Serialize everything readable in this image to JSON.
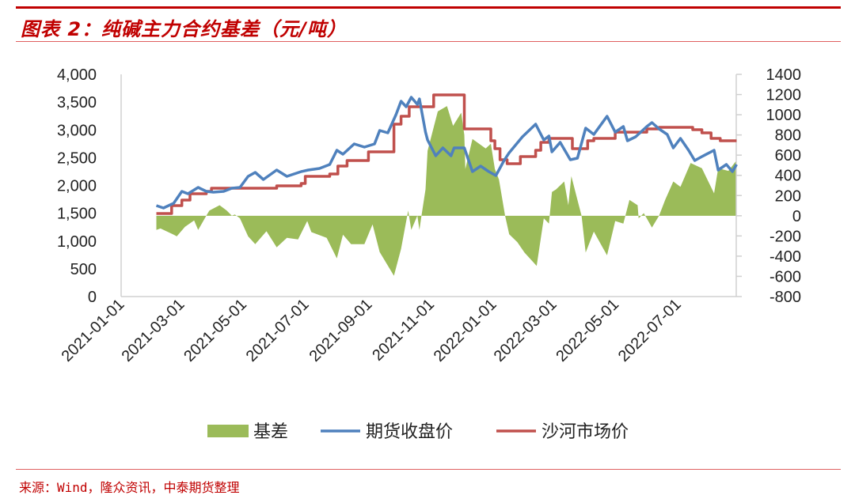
{
  "title": "图表 2：纯碱主力合约基差（元/吨）",
  "source": "来源：Wind，隆众资讯，中泰期货整理",
  "colors": {
    "basis": "#9BBB59",
    "futures": "#4F81BD",
    "spot": "#C0504D",
    "accent": "#C00000"
  },
  "chart_data": {
    "type": "line",
    "title": "纯碱主力合约基差（元/吨）",
    "xlabel": "",
    "ylabel": "",
    "y2label": "",
    "xlim": [
      "2021-01-01",
      "2022-08-26"
    ],
    "ylim": [
      0,
      4000
    ],
    "y2lim": [
      -800,
      1400
    ],
    "x_ticks": [
      "2021-01-01",
      "2021-03-01",
      "2021-05-01",
      "2021-07-01",
      "2021-09-01",
      "2021-11-01",
      "2022-01-01",
      "2022-03-01",
      "2022-05-01",
      "2022-07-01"
    ],
    "y_ticks": [
      "0",
      "500",
      "1,000",
      "1,500",
      "2,000",
      "2,500",
      "3,000",
      "3,500",
      "4,000"
    ],
    "y_tick_values": [
      0,
      500,
      1000,
      1500,
      2000,
      2500,
      3000,
      3500,
      4000
    ],
    "y2_ticks": [
      "-800",
      "-600",
      "-400",
      "-200",
      "0",
      "200",
      "400",
      "600",
      "800",
      "1000",
      "1200",
      "1400"
    ],
    "y2_tick_values": [
      -800,
      -600,
      -400,
      -200,
      0,
      200,
      400,
      600,
      800,
      1000,
      1200,
      1400
    ],
    "legend": {
      "position": "bottom",
      "entries": [
        "基差",
        "期货收盘价",
        "沙河市场价"
      ]
    },
    "series": [
      {
        "name": "基差",
        "kind": "area",
        "axis": "right",
        "points": [
          [
            "2021-02-03",
            -141
          ],
          [
            "2021-02-07",
            -126
          ],
          [
            "2021-02-20",
            -188
          ],
          [
            "2021-02-23",
            -204
          ],
          [
            "2021-03-03",
            -110
          ],
          [
            "2021-03-12",
            -47
          ],
          [
            "2021-03-16",
            -141
          ],
          [
            "2021-03-24",
            0
          ],
          [
            "2021-03-27",
            52
          ],
          [
            "2021-04-06",
            104
          ],
          [
            "2021-04-13",
            52
          ],
          [
            "2021-04-18",
            0
          ],
          [
            "2021-04-21",
            13
          ],
          [
            "2021-04-26",
            -26
          ],
          [
            "2021-05-04",
            -204
          ],
          [
            "2021-05-11",
            -282
          ],
          [
            "2021-05-22",
            -153
          ],
          [
            "2021-06-01",
            -313
          ],
          [
            "2021-06-11",
            -219
          ],
          [
            "2021-06-22",
            -235
          ],
          [
            "2021-07-01",
            -52
          ],
          [
            "2021-07-05",
            -162
          ],
          [
            "2021-07-20",
            -219
          ],
          [
            "2021-07-30",
            -423
          ],
          [
            "2021-08-05",
            -188
          ],
          [
            "2021-08-13",
            -282
          ],
          [
            "2021-08-26",
            -282
          ],
          [
            "2021-09-03",
            -86
          ],
          [
            "2021-09-10",
            -360
          ],
          [
            "2021-09-24",
            -595
          ],
          [
            "2021-10-01",
            -329
          ],
          [
            "2021-10-08",
            52
          ],
          [
            "2021-10-11",
            -141
          ],
          [
            "2021-10-17",
            0
          ],
          [
            "2021-10-19",
            -141
          ],
          [
            "2021-10-21",
            0
          ],
          [
            "2021-10-25",
            261
          ],
          [
            "2021-10-27",
            642
          ],
          [
            "2021-11-06",
            1033
          ],
          [
            "2021-11-15",
            1086
          ],
          [
            "2021-11-21",
            890
          ],
          [
            "2021-11-29",
            1020
          ],
          [
            "2021-12-02",
            799
          ],
          [
            "2021-12-03",
            462
          ],
          [
            "2021-12-10",
            760
          ],
          [
            "2021-12-23",
            666
          ],
          [
            "2021-12-28",
            713
          ],
          [
            "2022-01-01",
            462
          ],
          [
            "2022-01-05",
            358
          ],
          [
            "2022-01-11",
            0
          ],
          [
            "2022-01-15",
            -183
          ],
          [
            "2022-01-23",
            -261
          ],
          [
            "2022-01-30",
            -365
          ],
          [
            "2022-02-11",
            -496
          ],
          [
            "2022-02-18",
            -26
          ],
          [
            "2022-02-23",
            -78
          ],
          [
            "2022-02-26",
            235
          ],
          [
            "2022-03-02",
            261
          ],
          [
            "2022-03-10",
            339
          ],
          [
            "2022-03-14",
            104
          ],
          [
            "2022-03-17",
            392
          ],
          [
            "2022-03-23",
            157
          ],
          [
            "2022-03-27",
            0
          ],
          [
            "2022-03-31",
            -365
          ],
          [
            "2022-04-08",
            -157
          ],
          [
            "2022-04-21",
            -392
          ],
          [
            "2022-04-29",
            -52
          ],
          [
            "2022-05-07",
            -78
          ],
          [
            "2022-05-13",
            157
          ],
          [
            "2022-05-21",
            104
          ],
          [
            "2022-05-22",
            -26
          ],
          [
            "2022-05-27",
            26
          ],
          [
            "2022-06-04",
            -117
          ],
          [
            "2022-06-11",
            0
          ],
          [
            "2022-06-17",
            157
          ],
          [
            "2022-06-25",
            339
          ],
          [
            "2022-07-02",
            287
          ],
          [
            "2022-07-12",
            522
          ],
          [
            "2022-07-23",
            470
          ],
          [
            "2022-08-04",
            222
          ],
          [
            "2022-08-08",
            470
          ],
          [
            "2022-08-18",
            444
          ],
          [
            "2022-08-26",
            548
          ]
        ]
      },
      {
        "name": "期货收盘价",
        "kind": "line",
        "axis": "left",
        "points": [
          [
            "2021-02-03",
            1637
          ],
          [
            "2021-02-10",
            1594
          ],
          [
            "2021-02-20",
            1680
          ],
          [
            "2021-02-28",
            1893
          ],
          [
            "2021-03-06",
            1850
          ],
          [
            "2021-03-16",
            1964
          ],
          [
            "2021-03-24",
            1893
          ],
          [
            "2021-03-31",
            1879
          ],
          [
            "2021-04-10",
            1893
          ],
          [
            "2021-04-18",
            1950
          ],
          [
            "2021-04-26",
            1964
          ],
          [
            "2021-05-04",
            2164
          ],
          [
            "2021-05-11",
            2235
          ],
          [
            "2021-05-19",
            2107
          ],
          [
            "2021-06-01",
            2278
          ],
          [
            "2021-06-11",
            2164
          ],
          [
            "2021-06-25",
            2249
          ],
          [
            "2021-07-02",
            2278
          ],
          [
            "2021-07-13",
            2306
          ],
          [
            "2021-07-23",
            2377
          ],
          [
            "2021-07-30",
            2633
          ],
          [
            "2021-08-05",
            2562
          ],
          [
            "2021-08-16",
            2747
          ],
          [
            "2021-08-26",
            2690
          ],
          [
            "2021-09-05",
            2747
          ],
          [
            "2021-09-10",
            2989
          ],
          [
            "2021-09-18",
            2946
          ],
          [
            "2021-09-26",
            3274
          ],
          [
            "2021-10-01",
            3516
          ],
          [
            "2021-10-06",
            3416
          ],
          [
            "2021-10-11",
            3587
          ],
          [
            "2021-10-17",
            3459
          ],
          [
            "2021-10-19",
            3558
          ],
          [
            "2021-10-25",
            2960
          ],
          [
            "2021-10-27",
            2818
          ],
          [
            "2021-11-04",
            2534
          ],
          [
            "2021-11-11",
            2676
          ],
          [
            "2021-11-19",
            2534
          ],
          [
            "2021-11-22",
            2676
          ],
          [
            "2021-12-02",
            2676
          ],
          [
            "2021-12-10",
            2249
          ],
          [
            "2021-12-18",
            2349
          ],
          [
            "2021-12-26",
            2249
          ],
          [
            "2022-01-02",
            2178
          ],
          [
            "2022-01-10",
            2448
          ],
          [
            "2022-01-15",
            2590
          ],
          [
            "2022-01-28",
            2875
          ],
          [
            "2022-02-10",
            3103
          ],
          [
            "2022-02-18",
            2818
          ],
          [
            "2022-02-23",
            2889
          ],
          [
            "2022-02-26",
            2605
          ],
          [
            "2022-03-06",
            2776
          ],
          [
            "2022-03-16",
            2463
          ],
          [
            "2022-03-23",
            2491
          ],
          [
            "2022-03-31",
            3032
          ],
          [
            "2022-04-08",
            2918
          ],
          [
            "2022-04-21",
            3245
          ],
          [
            "2022-04-29",
            2960
          ],
          [
            "2022-05-07",
            3060
          ],
          [
            "2022-05-11",
            2804
          ],
          [
            "2022-05-19",
            2875
          ],
          [
            "2022-05-30",
            3060
          ],
          [
            "2022-06-04",
            3132
          ],
          [
            "2022-06-11",
            3018
          ],
          [
            "2022-06-19",
            2918
          ],
          [
            "2022-06-25",
            2676
          ],
          [
            "2022-07-02",
            2847
          ],
          [
            "2022-07-10",
            2633
          ],
          [
            "2022-07-16",
            2448
          ],
          [
            "2022-07-23",
            2520
          ],
          [
            "2022-08-04",
            2633
          ],
          [
            "2022-08-08",
            2278
          ],
          [
            "2022-08-16",
            2377
          ],
          [
            "2022-08-22",
            2249
          ],
          [
            "2022-08-26",
            2377
          ]
        ]
      },
      {
        "name": "沙河市场价",
        "kind": "step",
        "axis": "left",
        "points": [
          [
            "2021-02-03",
            1495
          ],
          [
            "2021-02-18",
            1637
          ],
          [
            "2021-02-28",
            1737
          ],
          [
            "2021-03-08",
            1850
          ],
          [
            "2021-03-24",
            1893
          ],
          [
            "2021-03-29",
            1950
          ],
          [
            "2021-06-01",
            1993
          ],
          [
            "2021-06-25",
            2036
          ],
          [
            "2021-06-29",
            2164
          ],
          [
            "2021-07-23",
            2207
          ],
          [
            "2021-07-31",
            2349
          ],
          [
            "2021-08-09",
            2448
          ],
          [
            "2021-08-30",
            2605
          ],
          [
            "2021-09-24",
            3103
          ],
          [
            "2021-10-01",
            3245
          ],
          [
            "2021-10-09",
            3416
          ],
          [
            "2021-11-02",
            3630
          ],
          [
            "2021-12-02",
            3018
          ],
          [
            "2021-12-28",
            2804
          ],
          [
            "2022-01-01",
            2662
          ],
          [
            "2022-01-06",
            2463
          ],
          [
            "2022-01-13",
            2392
          ],
          [
            "2022-01-26",
            2520
          ],
          [
            "2022-02-10",
            2633
          ],
          [
            "2022-02-15",
            2776
          ],
          [
            "2022-02-23",
            2847
          ],
          [
            "2022-03-18",
            2662
          ],
          [
            "2022-04-02",
            2804
          ],
          [
            "2022-04-08",
            2847
          ],
          [
            "2022-04-29",
            2960
          ],
          [
            "2022-05-30",
            3018
          ],
          [
            "2022-06-11",
            3046
          ],
          [
            "2022-07-14",
            3004
          ],
          [
            "2022-07-23",
            2946
          ],
          [
            "2022-08-01",
            2847
          ],
          [
            "2022-08-10",
            2804
          ],
          [
            "2022-08-26",
            2804
          ]
        ]
      }
    ]
  }
}
